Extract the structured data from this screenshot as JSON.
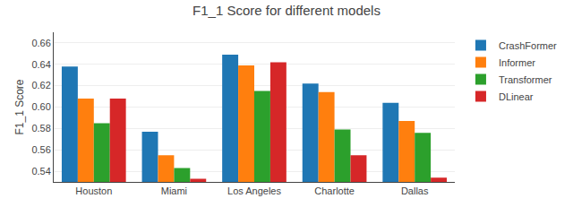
{
  "chart_data": {
    "type": "bar",
    "title": "F1_1 Score for different models",
    "ylabel": "F1_1 Score",
    "categories": [
      "Houston",
      "Miami",
      "Los Angeles",
      "Charlotte",
      "Dallas"
    ],
    "series": [
      {
        "name": "CrashFormer",
        "color": "#1f77b4",
        "values": [
          0.638,
          0.577,
          0.649,
          0.622,
          0.604
        ]
      },
      {
        "name": "Informer",
        "color": "#ff7f0e",
        "values": [
          0.608,
          0.555,
          0.639,
          0.614,
          0.587
        ]
      },
      {
        "name": "Transformer",
        "color": "#2ca02c",
        "values": [
          0.585,
          0.543,
          0.615,
          0.579,
          0.576
        ]
      },
      {
        "name": "DLinear",
        "color": "#d62728",
        "values": [
          0.608,
          0.533,
          0.642,
          0.555,
          0.534
        ]
      }
    ],
    "ylim": [
      0.53,
      0.67
    ],
    "yticks": [
      0.54,
      0.56,
      0.58,
      {
        "value": 0.6,
        "label": "0.60"
      },
      0.62,
      0.64,
      0.66
    ],
    "grid": true,
    "legend": "upper right"
  }
}
